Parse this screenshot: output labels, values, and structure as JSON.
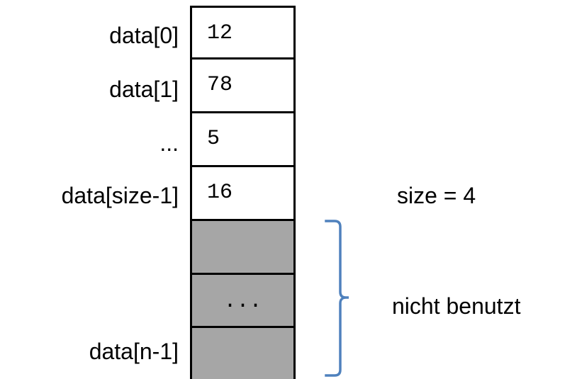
{
  "array": {
    "used_cells": [
      {
        "index_label": "data[0]",
        "value": "12"
      },
      {
        "index_label": "data[1]",
        "value": "78"
      },
      {
        "index_label": "...",
        "value": "5"
      },
      {
        "index_label": "data[size-1]",
        "value": "16"
      }
    ],
    "unused_cells": [
      {
        "index_label": "",
        "value": ""
      },
      {
        "index_label": "",
        "value": "..."
      },
      {
        "index_label": "data[n-1]",
        "value": ""
      }
    ]
  },
  "annotations": {
    "size": "size = 4",
    "unused": "nicht benutzt"
  },
  "colors": {
    "unused_fill": "#a6a6a6",
    "brace": "#4f81bd",
    "border": "#000000"
  }
}
